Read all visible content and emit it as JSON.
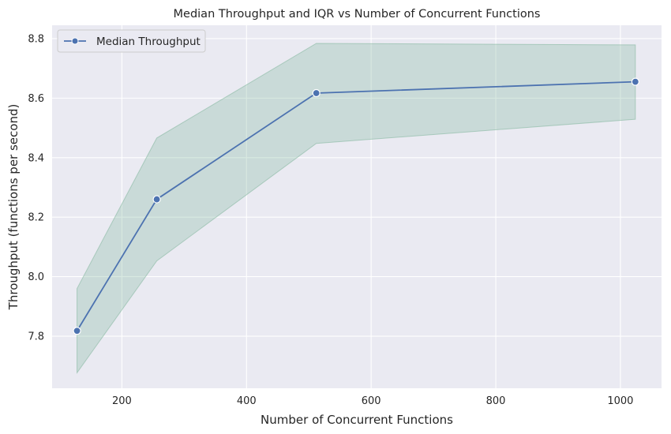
{
  "chart_data": {
    "type": "line",
    "title": "Median Throughput and IQR vs Number of Concurrent Functions",
    "xlabel": "Number of Concurrent Functions",
    "ylabel": "Throughput (functions per second)",
    "xlim": [
      88,
      1066
    ],
    "ylim": [
      7.625,
      8.845
    ],
    "x_ticks": [
      200,
      400,
      600,
      800,
      1000
    ],
    "y_ticks": [
      7.8,
      8.0,
      8.2,
      8.4,
      8.6,
      8.8
    ],
    "grid": true,
    "legend_position": "top-left",
    "x": [
      128,
      256,
      512,
      1024
    ],
    "series": [
      {
        "name": "Median Throughput",
        "values": [
          7.818,
          8.26,
          8.617,
          8.655
        ],
        "color": "#4c72b0",
        "marker": "circle"
      }
    ],
    "iqr_band": {
      "lower": [
        7.677,
        8.053,
        8.448,
        8.529
      ],
      "upper": [
        7.96,
        8.466,
        8.784,
        8.779
      ],
      "color": "#7fb59a"
    },
    "colors": {
      "plot_background": "#eaeaf2",
      "grid": "#ffffff",
      "line": "#4c72b0",
      "band": "#7fb59a"
    }
  }
}
